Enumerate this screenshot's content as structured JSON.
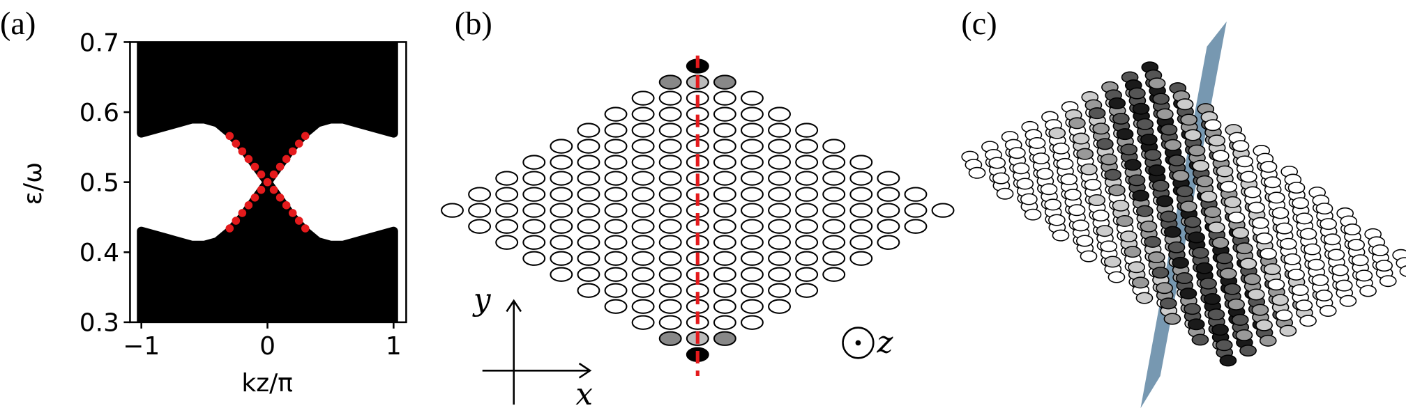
{
  "panel_labels": [
    "(a)",
    "(b)",
    "(c)"
  ],
  "chart_data": {
    "type": "band",
    "ylabel": "ε/ω",
    "xlabel": "kz/π",
    "xlim": [
      -1.09,
      1.1
    ],
    "ylim": [
      0.3,
      0.7
    ],
    "xticks": [
      {
        "value": -1,
        "label": "−1"
      },
      0,
      1
    ],
    "yticks": [
      0.3,
      0.4,
      0.5,
      0.6,
      0.7
    ],
    "bands": {
      "color": "#000000",
      "x": [
        -1,
        -0.9,
        -0.8,
        -0.7,
        -0.6,
        -0.5,
        -0.4,
        -0.3,
        -0.2,
        -0.1,
        0,
        0.1,
        0.2,
        0.3,
        0.4,
        0.5,
        0.6,
        0.7,
        0.8,
        0.9,
        1
      ],
      "upper_band_edge": [
        0.57,
        0.575,
        0.58,
        0.585,
        0.59,
        0.59,
        0.585,
        0.57,
        0.55,
        0.525,
        0.5,
        0.525,
        0.55,
        0.57,
        0.585,
        0.59,
        0.59,
        0.585,
        0.58,
        0.575,
        0.57
      ],
      "lower_band_edge": [
        0.43,
        0.425,
        0.42,
        0.415,
        0.41,
        0.41,
        0.415,
        0.43,
        0.45,
        0.475,
        0.5,
        0.475,
        0.45,
        0.43,
        0.415,
        0.41,
        0.41,
        0.415,
        0.42,
        0.425,
        0.43
      ]
    },
    "surface_states": {
      "color": "#e41a1c",
      "x": [
        -0.3,
        -0.25,
        -0.2,
        -0.15,
        -0.1,
        -0.05,
        0,
        0.05,
        0.1,
        0.15,
        0.2,
        0.25,
        0.3
      ],
      "series": [
        {
          "values": [
            0.434,
            0.445,
            0.456,
            0.467,
            0.478,
            0.489,
            0.5,
            0.511,
            0.522,
            0.533,
            0.544,
            0.555,
            0.566
          ]
        },
        {
          "values": [
            0.566,
            0.555,
            0.544,
            0.533,
            0.522,
            0.511,
            0.5,
            0.489,
            0.478,
            0.467,
            0.456,
            0.445,
            0.434
          ]
        }
      ]
    }
  },
  "diagram_b": {
    "axis_labels": [
      "y",
      "x"
    ],
    "out_of_plane": "z"
  }
}
